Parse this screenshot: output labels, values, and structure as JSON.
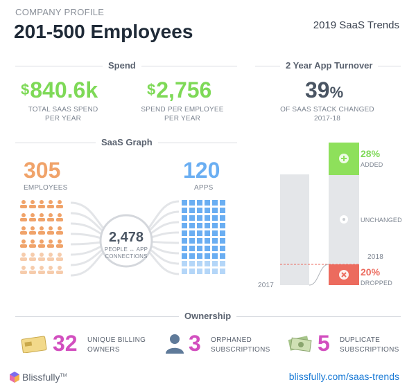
{
  "header": {
    "eyebrow": "COMPANY PROFILE",
    "title": "201-500 Employees",
    "right": "2019 SaaS Trends"
  },
  "spend": {
    "section": "Spend",
    "total": {
      "currency": "$",
      "value": "840.6k",
      "caption1": "TOTAL SAAS SPEND",
      "caption2": "PER YEAR"
    },
    "per_employee": {
      "currency": "$",
      "value": "2,756",
      "caption1": "SPEND PER EMPLOYEE",
      "caption2": "PER YEAR"
    }
  },
  "turnover": {
    "section": "2 Year App Turnover",
    "value": "39",
    "unit": "%",
    "caption1": "OF SAAS STACK CHANGED",
    "caption2": "2017-18"
  },
  "graph": {
    "section": "SaaS Graph",
    "employees": {
      "value": "305",
      "label": "EMPLOYEES"
    },
    "apps": {
      "value": "120",
      "label": "APPS"
    },
    "connections": {
      "value": "2,478",
      "label1": "PEOPLE ↔ APP",
      "label2": "CONNECTIONS"
    }
  },
  "stack_chart": {
    "added": {
      "pct": "28%",
      "label": "ADDED",
      "value": 28
    },
    "unchanged": {
      "label": "UNCHANGED"
    },
    "dropped": {
      "pct": "20%",
      "label": "DROPPED",
      "value": 20
    },
    "year_2017": "2017",
    "year_2018": "2018"
  },
  "ownership": {
    "section": "Ownership",
    "items": [
      {
        "num": "32",
        "line1": "UNIQUE BILLING",
        "line2": "OWNERS"
      },
      {
        "num": "3",
        "line1": "ORPHANED",
        "line2": "SUBSCRIPTIONS"
      },
      {
        "num": "5",
        "line1": "DUPLICATE",
        "line2": "SUBSCRIPTIONS"
      }
    ]
  },
  "footer": {
    "brand": "Blissfully",
    "tm": "TM",
    "link": "blissfully.com/saas-trends"
  },
  "colors": {
    "green": "#7ed957",
    "orange": "#f0a36a",
    "blue": "#6aaef2",
    "red": "#ec6b5e",
    "magenta": "#d24fbf",
    "grey_bar": "#e4e6e9"
  }
}
